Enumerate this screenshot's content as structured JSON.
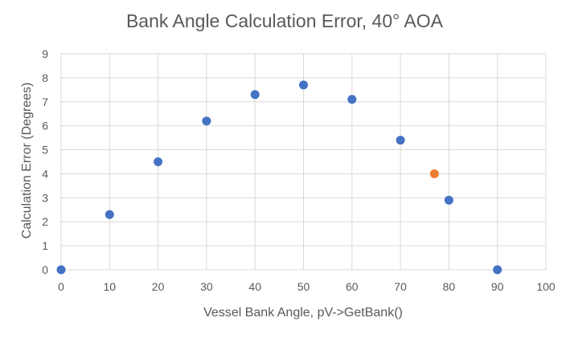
{
  "chart_data": {
    "type": "scatter",
    "title": "Bank Angle Calculation Error, 40° AOA",
    "xlabel": "Vessel Bank Angle, pV->GetBank()",
    "ylabel": "Calculation Error (Degrees)",
    "xlim": [
      0,
      100
    ],
    "ylim": [
      0,
      9
    ],
    "xticks": [
      0,
      10,
      20,
      30,
      40,
      50,
      60,
      70,
      80,
      90,
      100
    ],
    "yticks": [
      0,
      1,
      2,
      3,
      4,
      5,
      6,
      7,
      8,
      9
    ],
    "grid": true,
    "legend": "none",
    "series": [
      {
        "color": "#4472c4",
        "points": [
          {
            "x": 0,
            "y": 0
          },
          {
            "x": 10,
            "y": 2.3
          },
          {
            "x": 20,
            "y": 4.5
          },
          {
            "x": 30,
            "y": 6.2
          },
          {
            "x": 40,
            "y": 7.3
          },
          {
            "x": 50,
            "y": 7.7
          },
          {
            "x": 60,
            "y": 7.1
          },
          {
            "x": 70,
            "y": 5.4
          },
          {
            "x": 80,
            "y": 2.9
          },
          {
            "x": 90,
            "y": 0
          }
        ]
      },
      {
        "color": "#ed7d31",
        "points": [
          {
            "x": 77,
            "y": 4.0
          }
        ]
      }
    ]
  }
}
